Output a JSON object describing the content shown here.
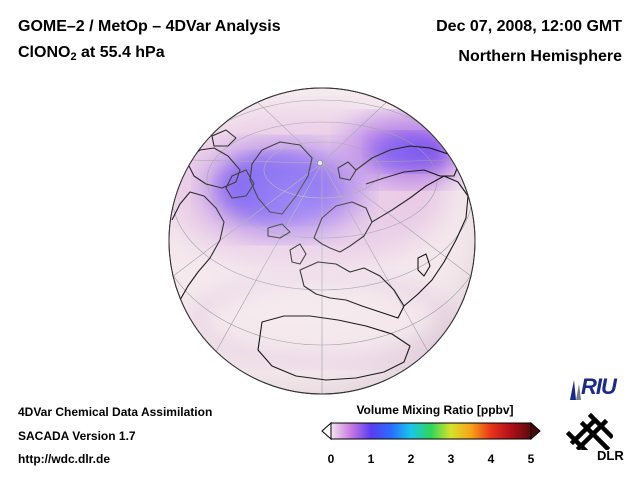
{
  "header": {
    "title_line1": "GOME–2 / MetOp – 4DVar Analysis",
    "species_prefix": "ClONO",
    "species_subscript": "2",
    "species_suffix": " at 55.4 hPa",
    "datetime": "Dec 07, 2008, 12:00 GMT",
    "region": "Northern Hemisphere"
  },
  "footer": {
    "line1": "4DVar Chemical Data Assimilation",
    "line2": "SACADA Version 1.7",
    "line3": "http://wdc.dlr.de"
  },
  "colorbar": {
    "label": "Volume Mixing Ratio [ppbv]",
    "min": 0,
    "max": 5,
    "ticks": [
      "0",
      "1",
      "2",
      "3",
      "4",
      "5"
    ],
    "colors": [
      "#f3e6ee",
      "#c879e0",
      "#5a3cf2",
      "#2a6cff",
      "#19c7e8",
      "#2fd65a",
      "#d8e22a",
      "#f6a418",
      "#e8341a",
      "#b0101a",
      "#5a0a0a"
    ]
  },
  "map": {
    "projection": "orthographic",
    "background_color": "#f4e8ec",
    "high_color": "#5f45ee",
    "land_outline_color": "#111111",
    "grid_color": "#9a9aa6"
  },
  "logos": {
    "riu": "RIU",
    "dlr": "DLR"
  }
}
